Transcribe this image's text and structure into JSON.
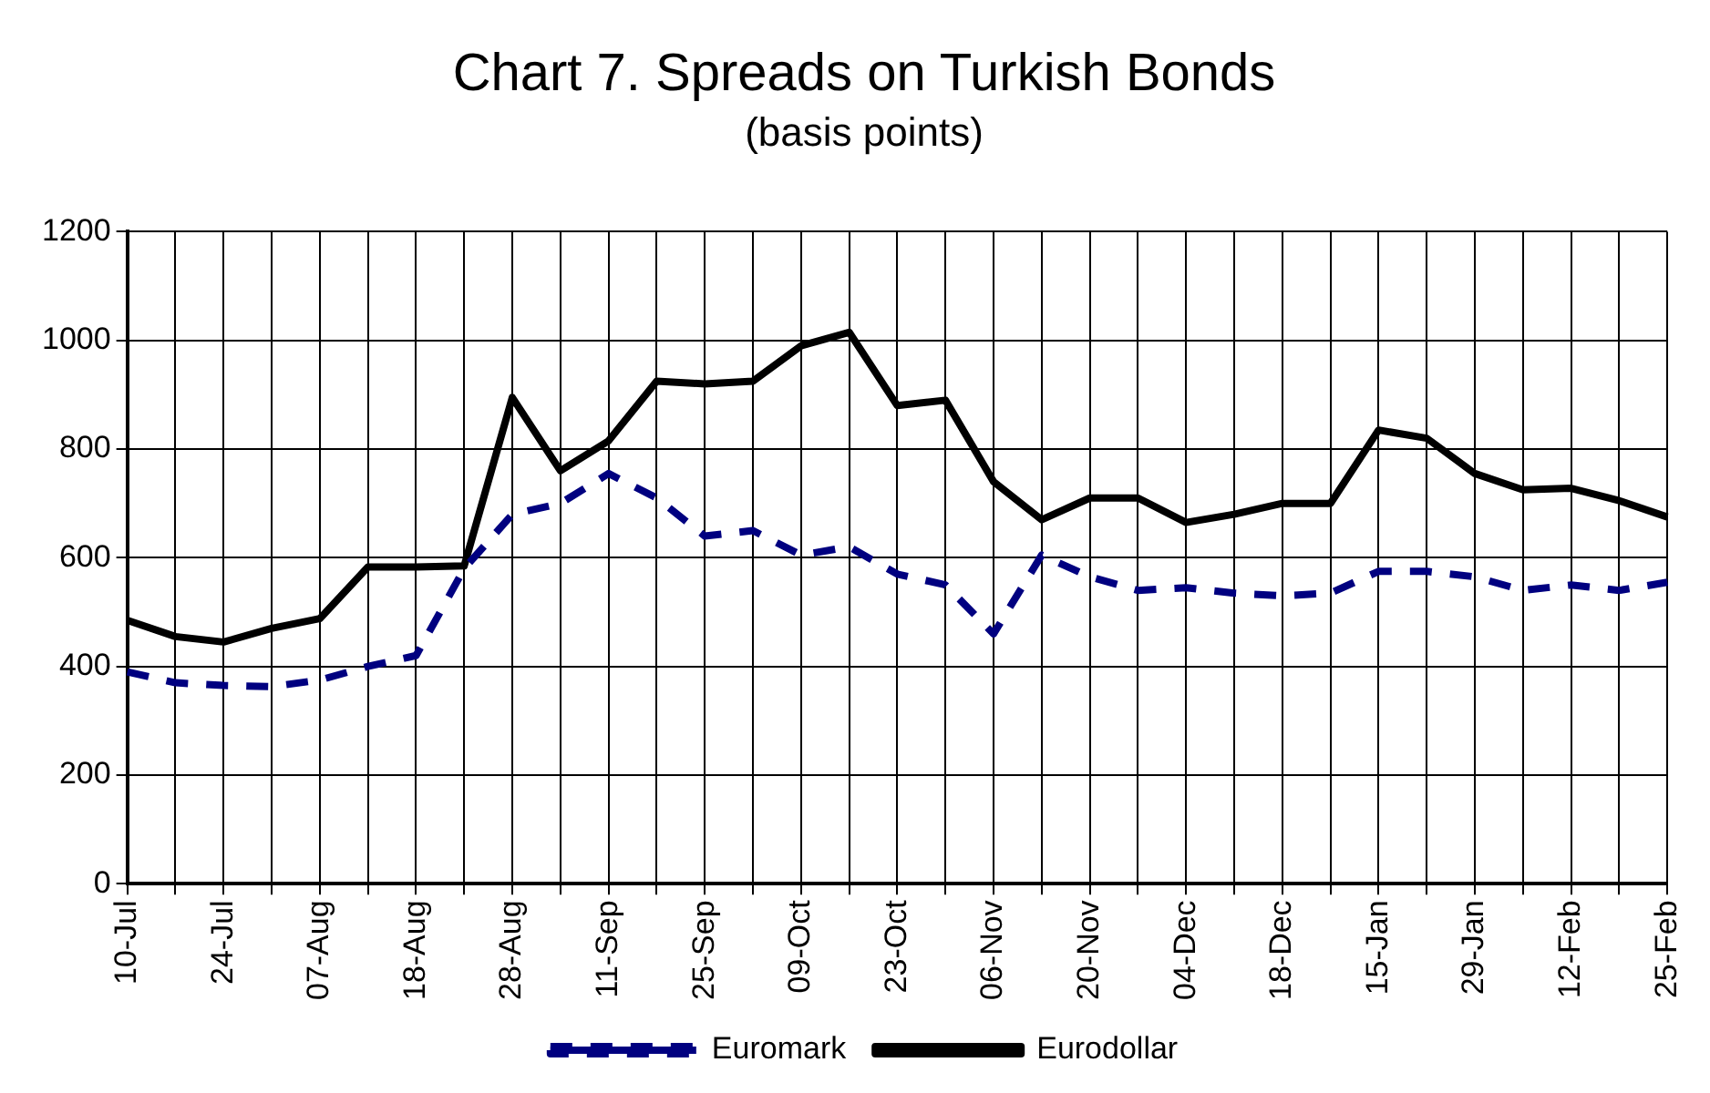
{
  "chart_data": {
    "type": "line",
    "title": "Chart 7. Spreads on Turkish Bonds",
    "subtitle": "(basis points)",
    "categories": [
      "10-Jul",
      null,
      "24-Jul",
      null,
      "07-Aug",
      null,
      "18-Aug",
      null,
      "28-Aug",
      null,
      "11-Sep",
      null,
      "25-Sep",
      null,
      "09-Oct",
      null,
      "23-Oct",
      null,
      "06-Nov",
      null,
      "20-Nov",
      null,
      "04-Dec",
      null,
      "18-Dec",
      null,
      "15-Jan",
      null,
      "29-Jan",
      null,
      "12-Feb",
      null,
      "25-Feb"
    ],
    "series": [
      {
        "name": "Euromark",
        "color": "#000080",
        "line_style": "dashed",
        "values": [
          390,
          370,
          365,
          363,
          375,
          400,
          420,
          580,
          680,
          700,
          755,
          710,
          640,
          650,
          605,
          620,
          570,
          550,
          460,
          605,
          565,
          540,
          545,
          535,
          530,
          535,
          575,
          575,
          565,
          540,
          550,
          540,
          555
        ]
      },
      {
        "name": "Eurodollar",
        "color": "#000000",
        "line_style": "solid",
        "values": [
          485,
          455,
          445,
          470,
          488,
          583,
          583,
          585,
          895,
          760,
          815,
          925,
          920,
          925,
          990,
          1015,
          880,
          890,
          740,
          670,
          710,
          710,
          665,
          680,
          700,
          700,
          835,
          820,
          755,
          725,
          728,
          705,
          675
        ]
      }
    ],
    "ylim": [
      0,
      1200
    ],
    "yticks": [
      0,
      200,
      400,
      600,
      800,
      1000,
      1200
    ],
    "grid": true,
    "legend": "bottom",
    "marker": "none"
  }
}
